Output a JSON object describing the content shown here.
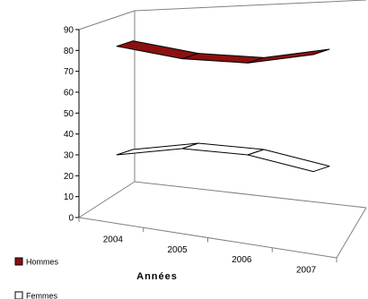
{
  "chart_data": {
    "type": "line",
    "title": "",
    "xlabel": "Années",
    "ylabel": "",
    "x": [
      "2004",
      "2005",
      "2006",
      "2007"
    ],
    "ylim": [
      0,
      90
    ],
    "yticks": [
      "0",
      "10",
      "20",
      "30",
      "40",
      "50",
      "60",
      "70",
      "80",
      "90"
    ],
    "legend_position": "bottom-left",
    "series": [
      {
        "name": "Hommes",
        "values": [
          82,
          76,
          74,
          78
        ],
        "color": "#8b1010"
      },
      {
        "name": "Femmes",
        "values": [
          30,
          33,
          30,
          22
        ],
        "color": "#ffffff"
      }
    ]
  }
}
